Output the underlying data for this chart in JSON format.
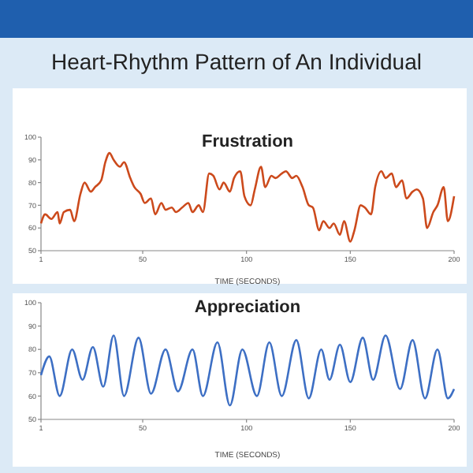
{
  "chart_data": [
    {
      "type": "line",
      "title": "Frustration",
      "xlabel": "TIME (SECONDS)",
      "annotations": [
        "Heart-Rhythm Pattern of An Individual"
      ],
      "xlim": [
        1,
        200
      ],
      "ylim": [
        50,
        100
      ],
      "xticks": [
        1,
        50,
        100,
        150,
        200
      ],
      "yticks": [
        50,
        60,
        70,
        80,
        90,
        100
      ],
      "grid": false,
      "marker": "none",
      "series": [
        {
          "color": "#cc4a1c",
          "x": [
            1,
            3,
            6,
            9,
            10,
            12,
            15,
            17,
            20,
            22,
            25,
            27,
            30,
            32,
            34,
            36,
            39,
            41,
            44,
            46,
            49,
            51,
            54,
            56,
            59,
            61,
            64,
            66,
            69,
            72,
            74,
            77,
            79,
            82,
            84,
            87,
            89,
            92,
            94,
            97,
            99,
            102,
            104,
            107,
            109,
            112,
            114,
            117,
            119,
            122,
            124,
            127,
            130,
            132,
            135,
            137,
            140,
            142,
            145,
            147,
            150,
            152,
            155,
            157,
            160,
            162,
            165,
            167,
            170,
            172,
            175,
            177,
            180,
            182,
            185,
            187,
            190,
            192,
            195,
            197,
            200
          ],
          "values": [
            62,
            66,
            64,
            67,
            62,
            67,
            68,
            63,
            75,
            80,
            76,
            78,
            81,
            89,
            93,
            90,
            87,
            89,
            82,
            78,
            75,
            71,
            73,
            66,
            71,
            68,
            69,
            67,
            69,
            71,
            67,
            70,
            67,
            84,
            83,
            77,
            80,
            76,
            82,
            85,
            74,
            70,
            77,
            87,
            78,
            83,
            82,
            84,
            85,
            82,
            83,
            78,
            70,
            69,
            59,
            63,
            60,
            62,
            57,
            63,
            54,
            59,
            70,
            69,
            66,
            78,
            85,
            82,
            84,
            78,
            81,
            73,
            76,
            77,
            73,
            60,
            67,
            70,
            78,
            63,
            74
          ]
        }
      ]
    },
    {
      "type": "line",
      "title": "Appreciation",
      "xlabel": "TIME (SECONDS)",
      "xlim": [
        1,
        200
      ],
      "ylim": [
        50,
        100
      ],
      "xticks": [
        1,
        50,
        100,
        150,
        200
      ],
      "yticks": [
        50,
        60,
        70,
        80,
        90,
        100
      ],
      "grid": false,
      "marker": "none",
      "series": [
        {
          "color": "#3d6fc4",
          "x": [
            1,
            5,
            10,
            16,
            21,
            26,
            31,
            36,
            41,
            48,
            54,
            61,
            67,
            74,
            79,
            86,
            92,
            98,
            105,
            111,
            117,
            124,
            130,
            136,
            140,
            145,
            150,
            156,
            161,
            167,
            174,
            180,
            186,
            192,
            197,
            200
          ],
          "values": [
            69,
            77,
            60,
            80,
            67,
            81,
            64,
            86,
            60,
            85,
            61,
            80,
            62,
            80,
            60,
            83,
            56,
            80,
            60,
            83,
            60,
            84,
            59,
            80,
            67,
            82,
            66,
            85,
            67,
            86,
            63,
            84,
            59,
            80,
            59,
            63
          ]
        }
      ]
    }
  ]
}
